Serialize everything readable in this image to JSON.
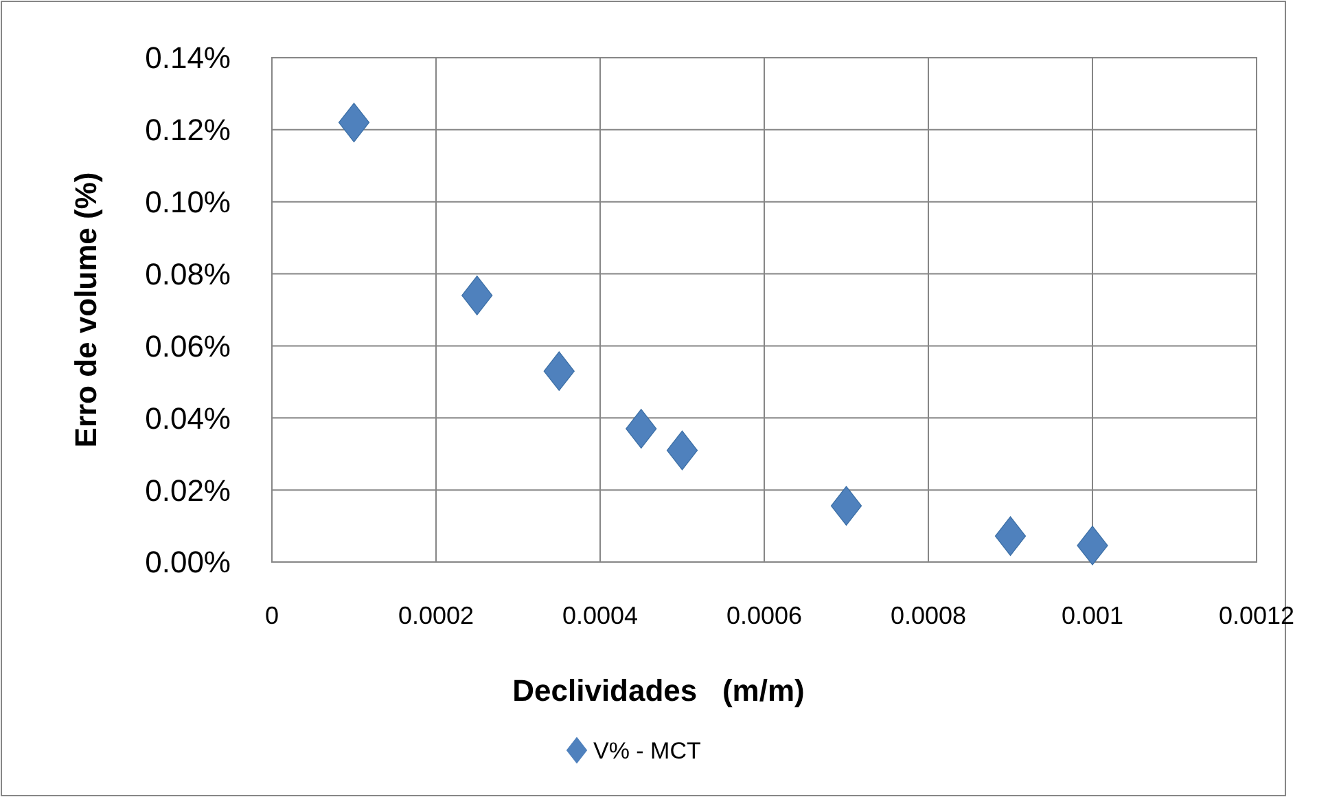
{
  "chart_data": {
    "type": "scatter",
    "xlabel": "Declividades   (m/m)",
    "ylabel": "Erro de volume (%)",
    "xlim": [
      0,
      0.0012
    ],
    "xticks": [
      0,
      0.0002,
      0.0004,
      0.0006,
      0.0008,
      0.001,
      0.0012
    ],
    "ylim": [
      0,
      0.14
    ],
    "yticks": [
      {
        "value": 0,
        "label": "0.00%"
      },
      {
        "value": 0.02,
        "label": "0.02%"
      },
      {
        "value": 0.04,
        "label": "0.04%"
      },
      {
        "value": 0.06,
        "label": "0.06%"
      },
      {
        "value": 0.08,
        "label": "0.08%"
      },
      {
        "value": 0.1,
        "label": "0.10%"
      },
      {
        "value": 0.12,
        "label": "0.12%"
      },
      {
        "value": 0.14,
        "label": "0.14%"
      }
    ],
    "grid": true,
    "legend": "bottom",
    "marker": "diamond",
    "series": [
      {
        "name": "V% - MCT",
        "color": "#4f81bd",
        "x": [
          0.0001,
          0.00025,
          0.00035,
          0.00045,
          0.0005,
          0.0007,
          0.0009,
          0.001
        ],
        "values": [
          0.122,
          0.074,
          0.053,
          0.037,
          0.031,
          0.0156,
          0.0072,
          0.0046
        ]
      }
    ]
  }
}
